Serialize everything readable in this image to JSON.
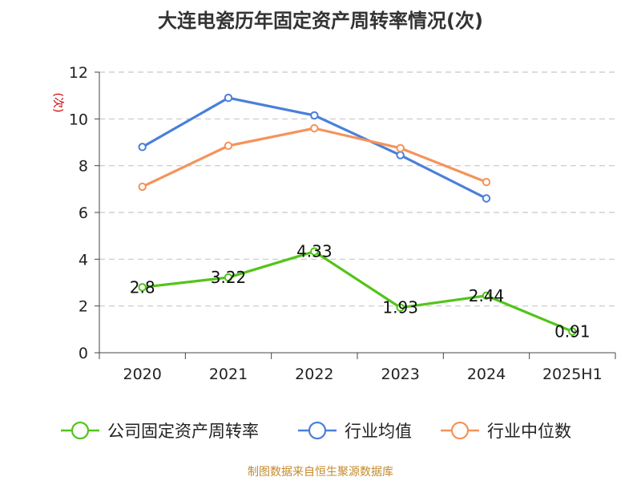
{
  "chart_data": {
    "type": "line",
    "title": "大连电瓷历年固定资产周转率情况(次)",
    "ylabel": "(次)",
    "categories": [
      "2020",
      "2021",
      "2022",
      "2023",
      "2024",
      "2025H1"
    ],
    "ylim": [
      0,
      12
    ],
    "yticks": [
      0,
      2,
      4,
      6,
      8,
      10,
      12
    ],
    "grid": true,
    "legend_position": "bottom",
    "series": [
      {
        "name": "公司固定资产周转率",
        "color": "#52c41a",
        "values": [
          2.8,
          3.22,
          4.33,
          1.93,
          2.44,
          0.91
        ],
        "labels": [
          "2.8",
          "3.22",
          "4.33",
          "1.93",
          "2.44",
          "0.91"
        ]
      },
      {
        "name": "行业均值",
        "color": "#4a7fdb",
        "values": [
          8.8,
          10.9,
          10.15,
          8.45,
          6.6,
          null
        ]
      },
      {
        "name": "行业中位数",
        "color": "#f5935a",
        "values": [
          7.1,
          8.85,
          9.6,
          8.75,
          7.3,
          null
        ]
      }
    ]
  },
  "source": "制图数据来自恒生聚源数据库"
}
